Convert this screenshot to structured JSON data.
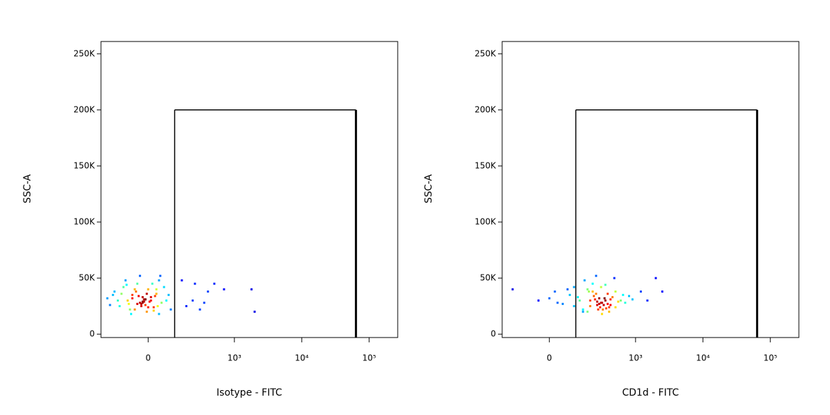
{
  "chart_data": [
    {
      "type": "scatter",
      "x_label": "Isotype - FITC",
      "y_label": "SSC-A",
      "x_scale": "biexponential",
      "colormap": "jet",
      "xlim": [
        -254,
        265000
      ],
      "ylim": [
        -3000,
        261000
      ],
      "xticks": [
        0,
        {
          "value": 1000,
          "label": "10³"
        },
        {
          "value": 10000,
          "label": "10⁴"
        },
        {
          "value": 100000,
          "label": "10⁵"
        }
      ],
      "yticks": [
        {
          "value": 0,
          "label": "0"
        },
        {
          "value": 50000,
          "label": "50K"
        },
        {
          "value": 100000,
          "label": "100K"
        },
        {
          "value": 150000,
          "label": "150K"
        },
        {
          "value": 200000,
          "label": "200K"
        },
        {
          "value": 250000,
          "label": "250K"
        }
      ],
      "gate": {
        "xlim": [
          109,
          63700
        ],
        "ylim": [
          -3000,
          200000
        ]
      },
      "x": [
        -200,
        -150,
        -120,
        -100,
        -80,
        -60,
        -50,
        -40,
        -30,
        -20,
        -10,
        0,
        10,
        20,
        30,
        40,
        50,
        60,
        80,
        -180,
        -130,
        -90,
        -70,
        -45,
        -25,
        -15,
        -5,
        5,
        15,
        25,
        35,
        45,
        -110,
        -75,
        -35,
        -20,
        -10,
        0,
        -30,
        -50,
        70,
        90,
        -160,
        -60,
        -40,
        -25,
        -15,
        -5,
        20,
        40,
        -85,
        -65,
        10,
        30,
        -20,
        -10,
        150,
        180,
        250,
        300,
        400,
        500,
        700,
        1800,
        2000,
        230,
        350
      ],
      "y": [
        32000,
        38000,
        25000,
        42000,
        30000,
        35000,
        22000,
        45000,
        28000,
        33000,
        26000,
        40000,
        30000,
        24000,
        36000,
        48000,
        28000,
        42000,
        35000,
        26000,
        30000,
        48000,
        22000,
        38000,
        27000,
        31000,
        20000,
        29000,
        45000,
        34000,
        25000,
        52000,
        36000,
        27000,
        34000,
        29000,
        31000,
        24000,
        52000,
        40000,
        30000,
        22000,
        35000,
        32000,
        27000,
        25000,
        29000,
        36000,
        21000,
        18000,
        44000,
        18000,
        33000,
        40000,
        28000,
        31000,
        48000,
        25000,
        45000,
        22000,
        38000,
        45000,
        40000,
        40000,
        20000,
        30000,
        28000
      ]
    },
    {
      "type": "scatter",
      "x_label": "CD1d - FITC",
      "y_label": "SSC-A",
      "x_scale": "biexponential",
      "colormap": "jet",
      "xlim": [
        -254,
        265000
      ],
      "ylim": [
        -3000,
        261000
      ],
      "xticks": [
        0,
        {
          "value": 1000,
          "label": "10³"
        },
        {
          "value": 10000,
          "label": "10⁴"
        },
        {
          "value": 100000,
          "label": "10⁵"
        }
      ],
      "yticks": [
        {
          "value": 0,
          "label": "0"
        },
        {
          "value": 50000,
          "label": "50K"
        },
        {
          "value": 100000,
          "label": "100K"
        },
        {
          "value": 150000,
          "label": "150K"
        },
        {
          "value": 200000,
          "label": "200K"
        },
        {
          "value": 250000,
          "label": "250K"
        }
      ],
      "gate": {
        "xlim": [
          109,
          63700
        ],
        "ylim": [
          -3000,
          200000
        ]
      },
      "x": [
        0,
        20,
        50,
        80,
        100,
        130,
        160,
        200,
        250,
        300,
        350,
        400,
        450,
        500,
        600,
        700,
        800,
        150,
        250,
        30,
        70,
        120,
        180,
        220,
        280,
        320,
        380,
        420,
        480,
        550,
        650,
        900,
        200,
        260,
        310,
        340,
        290,
        230,
        270,
        350,
        380,
        190,
        100,
        150,
        220,
        300,
        400,
        500,
        260,
        330,
        420,
        180,
        240,
        310,
        360,
        280,
        -170,
        -40,
        2000,
        2500,
        1500,
        1200
      ],
      "y": [
        32000,
        38000,
        27000,
        35000,
        42000,
        30000,
        48000,
        25000,
        36000,
        28000,
        44000,
        24000,
        33000,
        38000,
        30000,
        28000,
        34000,
        22000,
        52000,
        28000,
        40000,
        33000,
        20000,
        45000,
        32000,
        22000,
        36000,
        26000,
        50000,
        29000,
        35000,
        31000,
        30000,
        26000,
        28000,
        32000,
        24000,
        34000,
        22000,
        30000,
        27000,
        38000,
        25000,
        20000,
        38000,
        42000,
        20000,
        24000,
        29000,
        26000,
        31000,
        40000,
        31000,
        18000,
        23000,
        27000,
        40000,
        30000,
        50000,
        38000,
        30000,
        38000
      ]
    }
  ]
}
